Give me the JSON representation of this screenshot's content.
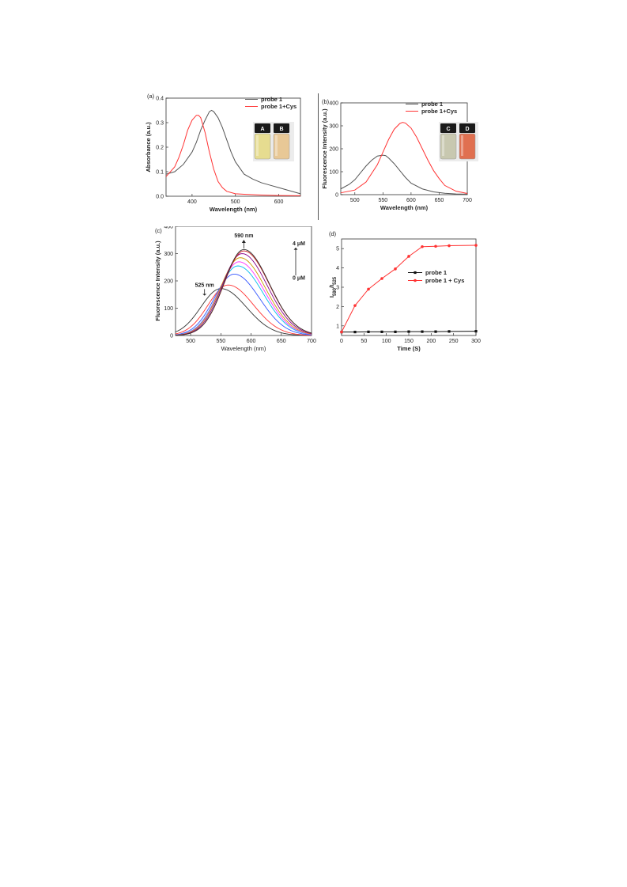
{
  "colors": {
    "probe": "#555555",
    "cys": "#ff3333",
    "axis": "#333333"
  },
  "chart_data": [
    {
      "id": "a",
      "type": "line",
      "panel_label": "(a)",
      "xlabel": "Wavelength (nm)",
      "ylabel": "Absorbance (a.u.)",
      "xlim": [
        340,
        650
      ],
      "ylim": [
        0.0,
        0.4
      ],
      "xticks": [
        400,
        500,
        600
      ],
      "yticks": [
        0.0,
        0.1,
        0.2,
        0.3,
        0.4
      ],
      "ytick_labels": [
        "0.0",
        "0.1",
        "0.2",
        "0.3",
        "0.4"
      ],
      "legend_position": "top-right",
      "series": [
        {
          "name": "probe 1",
          "color": "#555555",
          "x": [
            340,
            360,
            380,
            400,
            410,
            420,
            430,
            440,
            445,
            450,
            460,
            470,
            480,
            490,
            500,
            520,
            540,
            560,
            580,
            600,
            620,
            650
          ],
          "y": [
            0.09,
            0.1,
            0.13,
            0.18,
            0.22,
            0.27,
            0.31,
            0.345,
            0.35,
            0.345,
            0.32,
            0.28,
            0.23,
            0.18,
            0.14,
            0.09,
            0.07,
            0.055,
            0.045,
            0.035,
            0.025,
            0.01
          ]
        },
        {
          "name": "probe 1+Cys",
          "color": "#ff3333",
          "x": [
            340,
            360,
            370,
            380,
            390,
            400,
            410,
            415,
            420,
            430,
            440,
            450,
            460,
            470,
            480,
            500,
            520,
            560,
            600,
            650
          ],
          "y": [
            0.08,
            0.12,
            0.16,
            0.21,
            0.27,
            0.31,
            0.33,
            0.33,
            0.32,
            0.26,
            0.18,
            0.11,
            0.06,
            0.035,
            0.02,
            0.01,
            0.008,
            0.005,
            0.003,
            0.002
          ]
        }
      ],
      "inset_vials": [
        "A",
        "B"
      ]
    },
    {
      "id": "b",
      "type": "line",
      "panel_label": "(b)",
      "xlabel": "Wavelength (nm)",
      "ylabel": "Fluorescence Intensity (a.u.)",
      "xlim": [
        475,
        700
      ],
      "ylim": [
        0,
        400
      ],
      "xticks": [
        500,
        550,
        600,
        650,
        700
      ],
      "yticks": [
        0,
        100,
        200,
        300,
        400
      ],
      "ytick_labels": [
        "0",
        "100",
        "200",
        "300",
        "400"
      ],
      "legend_position": "top-right",
      "series": [
        {
          "name": "probe 1",
          "color": "#555555",
          "x": [
            475,
            490,
            500,
            510,
            520,
            530,
            540,
            550,
            555,
            560,
            570,
            580,
            590,
            600,
            620,
            640,
            660,
            680,
            700
          ],
          "y": [
            25,
            45,
            65,
            95,
            125,
            150,
            168,
            172,
            170,
            160,
            135,
            105,
            75,
            50,
            25,
            12,
            6,
            3,
            2
          ]
        },
        {
          "name": "probe 1+Cys",
          "color": "#ff3333",
          "x": [
            475,
            500,
            520,
            540,
            550,
            560,
            570,
            580,
            585,
            590,
            600,
            610,
            620,
            630,
            640,
            650,
            660,
            680,
            700
          ],
          "y": [
            8,
            20,
            55,
            130,
            185,
            240,
            285,
            310,
            315,
            312,
            290,
            250,
            200,
            150,
            105,
            70,
            40,
            15,
            5
          ]
        }
      ],
      "inset_vials": [
        "C",
        "D"
      ]
    },
    {
      "id": "c",
      "type": "line",
      "panel_label": "(c)",
      "xlabel": "Wavelength (nm)",
      "ylabel": "Fluorescence Intensity (a.u.)",
      "xlim": [
        475,
        700
      ],
      "ylim": [
        0,
        400
      ],
      "xticks": [
        500,
        550,
        600,
        650,
        700
      ],
      "yticks": [
        0,
        100,
        200,
        300,
        400
      ],
      "ytick_labels": [
        "0",
        "100",
        "200",
        "300",
        "400"
      ],
      "annotations": {
        "peak_top": "590 nm",
        "peak_left": "525 nm",
        "conc_high": "4 μM",
        "conc_low": "0 μM"
      },
      "family": [
        {
          "peak": 550,
          "height": 172,
          "color": "#333333"
        },
        {
          "peak": 562,
          "height": 185,
          "color": "#ff3333"
        },
        {
          "peak": 572,
          "height": 225,
          "color": "#3355ff"
        },
        {
          "peak": 578,
          "height": 255,
          "color": "#00bbee"
        },
        {
          "peak": 580,
          "height": 270,
          "color": "#ff33ff"
        },
        {
          "peak": 582,
          "height": 285,
          "color": "#cc9900"
        },
        {
          "peak": 585,
          "height": 300,
          "color": "#880088"
        },
        {
          "peak": 588,
          "height": 310,
          "color": "#cc2222"
        },
        {
          "peak": 588,
          "height": 315,
          "color": "#333333"
        }
      ]
    },
    {
      "id": "d",
      "type": "line",
      "panel_label": "(d)",
      "xlabel": "Time (S)",
      "ylabel": "I590/I525",
      "ylabel_main": "I",
      "ylabel_sub1": "590",
      "ylabel_mid": "/I",
      "ylabel_sub2": "525",
      "xlim": [
        0,
        300
      ],
      "ylim": [
        0.5,
        5.5
      ],
      "xticks": [
        0,
        50,
        100,
        150,
        200,
        250,
        300
      ],
      "yticks": [
        1,
        2,
        3,
        4,
        5
      ],
      "ytick_labels": [
        "1",
        "2",
        "3",
        "4",
        "5"
      ],
      "legend_position": "top-right",
      "series": [
        {
          "name": "probe 1",
          "color": "#111111",
          "marker": "square",
          "x": [
            0,
            30,
            60,
            90,
            120,
            150,
            180,
            210,
            240,
            300
          ],
          "y": [
            0.68,
            0.68,
            0.69,
            0.69,
            0.69,
            0.7,
            0.7,
            0.7,
            0.71,
            0.72
          ]
        },
        {
          "name": "probe 1 + Cys",
          "color": "#ff3333",
          "marker": "circle",
          "x": [
            0,
            30,
            60,
            90,
            120,
            150,
            180,
            210,
            240,
            300
          ],
          "y": [
            0.68,
            2.05,
            2.9,
            3.45,
            3.95,
            4.6,
            5.1,
            5.12,
            5.15,
            5.17
          ]
        }
      ]
    }
  ]
}
